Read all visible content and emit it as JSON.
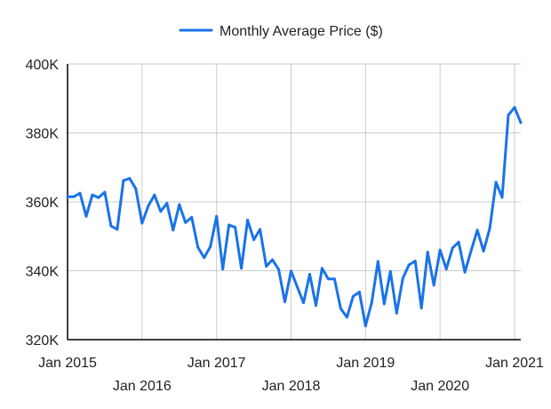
{
  "colors": {
    "series": "#1a73e8",
    "grid": "#cccccc",
    "axis": "#000000",
    "text": "#222222"
  },
  "chart_data": {
    "type": "line",
    "title": "",
    "xlabel": "",
    "ylabel": "",
    "ylim": [
      320000,
      400000
    ],
    "xlim": [
      "2015-01",
      "2021-02"
    ],
    "grid": true,
    "legend": {
      "position": "top"
    },
    "y_ticks": [
      {
        "value": 320000,
        "label": "320K"
      },
      {
        "value": 340000,
        "label": "340K"
      },
      {
        "value": 360000,
        "label": "360K"
      },
      {
        "value": 380000,
        "label": "380K"
      },
      {
        "value": 400000,
        "label": "400K"
      }
    ],
    "x_ticks": [
      {
        "date": "2015-01",
        "label": "Jan 2015",
        "row": 1
      },
      {
        "date": "2016-01",
        "label": "Jan 2016",
        "row": 2
      },
      {
        "date": "2017-01",
        "label": "Jan 2017",
        "row": 1
      },
      {
        "date": "2018-01",
        "label": "Jan 2018",
        "row": 2
      },
      {
        "date": "2019-01",
        "label": "Jan 2019",
        "row": 1
      },
      {
        "date": "2020-01",
        "label": "Jan 2020",
        "row": 2
      },
      {
        "date": "2021-01",
        "label": "Jan 2021",
        "row": 1
      }
    ],
    "series": [
      {
        "name": "Monthly Average Price ($)",
        "x": [
          "2015-01",
          "2015-02",
          "2015-03",
          "2015-04",
          "2015-05",
          "2015-06",
          "2015-07",
          "2015-08",
          "2015-09",
          "2015-10",
          "2015-11",
          "2015-12",
          "2016-01",
          "2016-02",
          "2016-03",
          "2016-04",
          "2016-05",
          "2016-06",
          "2016-07",
          "2016-08",
          "2016-09",
          "2016-10",
          "2016-11",
          "2016-12",
          "2017-01",
          "2017-02",
          "2017-03",
          "2017-04",
          "2017-05",
          "2017-06",
          "2017-07",
          "2017-08",
          "2017-09",
          "2017-10",
          "2017-11",
          "2017-12",
          "2018-01",
          "2018-02",
          "2018-03",
          "2018-04",
          "2018-05",
          "2018-06",
          "2018-07",
          "2018-08",
          "2018-09",
          "2018-10",
          "2018-11",
          "2018-12",
          "2019-01",
          "2019-02",
          "2019-03",
          "2019-04",
          "2019-05",
          "2019-06",
          "2019-07",
          "2019-08",
          "2019-09",
          "2019-10",
          "2019-11",
          "2019-12",
          "2020-01",
          "2020-02",
          "2020-03",
          "2020-04",
          "2020-05",
          "2020-06",
          "2020-07",
          "2020-08",
          "2020-09",
          "2020-10",
          "2020-11",
          "2020-12",
          "2021-01",
          "2021-02"
        ],
        "values": [
          361500,
          361500,
          362500,
          355800,
          362000,
          361200,
          362800,
          353000,
          352000,
          366200,
          366800,
          363800,
          353800,
          358800,
          362000,
          357200,
          359600,
          351800,
          359200,
          354000,
          355500,
          346800,
          343800,
          347000,
          355800,
          340500,
          353300,
          352600,
          340700,
          354700,
          349000,
          352000,
          341300,
          343200,
          340400,
          331000,
          339900,
          335300,
          330700,
          339000,
          329900,
          340700,
          337600,
          337600,
          329000,
          326500,
          332600,
          333800,
          324000,
          330800,
          342700,
          330400,
          339800,
          327700,
          337800,
          341700,
          342800,
          329200,
          345400,
          335800,
          346000,
          340500,
          346600,
          348300,
          339600,
          345800,
          351800,
          345700,
          352300,
          365700,
          361300,
          385200,
          387400,
          383000
        ]
      }
    ]
  }
}
